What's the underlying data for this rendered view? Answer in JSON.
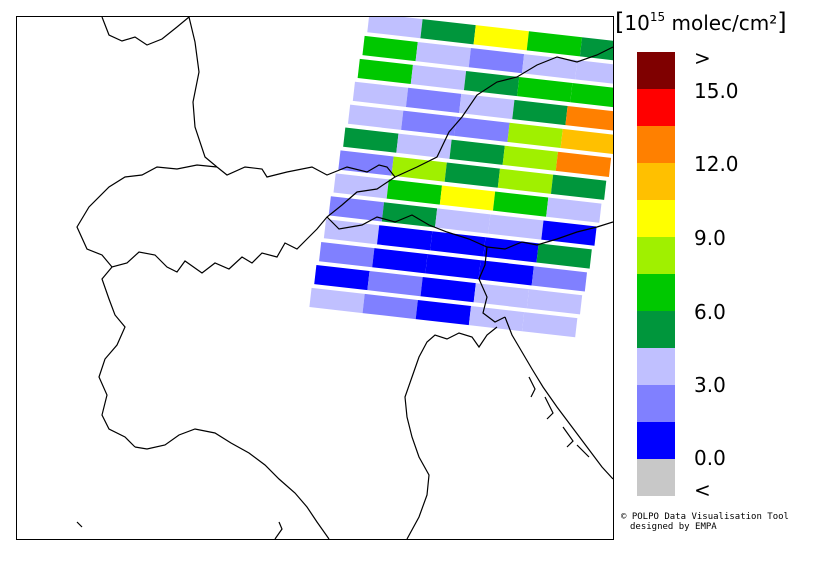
{
  "legend": {
    "unit_prefix": "10",
    "unit_exponent": "15",
    "unit_suffix": "molec/cm²",
    "swatches": [
      "#7f0000",
      "#ff0000",
      "#ff8000",
      "#ffc000",
      "#ffff00",
      "#a0f000",
      "#00c800",
      "#00963c",
      "#c0c0ff",
      "#8080ff",
      "#0000ff",
      "#c8c8c8"
    ],
    "ticks": [
      ">",
      "15.0",
      "12.0",
      "9.0",
      "6.0",
      "3.0",
      "0.0",
      "<"
    ]
  },
  "credit": {
    "line1": "© POLPO Data Visualisation Tool",
    "line2": "designed by EMPA"
  },
  "satellite_pixels": [
    [
      "#c0c0ff",
      "#00963c",
      "#ffff00",
      "#00c800",
      "#00963c"
    ],
    [
      "#00c800",
      "#c0c0ff",
      "#8080ff",
      "#c0c0ff",
      "#c0c0ff"
    ],
    [
      "#00c800",
      "#c0c0ff",
      "#00963c",
      "#00c800",
      "#00c800"
    ],
    [
      "#c0c0ff",
      "#8080ff",
      "#c0c0ff",
      "#00963c",
      "#ff8000"
    ],
    [
      "#c0c0ff",
      "#8080ff",
      "#8080ff",
      "#a0f000",
      "#ffc000"
    ],
    [
      "#00963c",
      "#c0c0ff",
      "#00963c",
      "#a0f000",
      "#ff8000"
    ],
    [
      "#8080ff",
      "#a0f000",
      "#00963c",
      "#a0f000",
      "#00963c"
    ],
    [
      "#c0c0ff",
      "#00c800",
      "#ffff00",
      "#00c800",
      "#c0c0ff"
    ],
    [
      "#8080ff",
      "#00963c",
      "#c0c0ff",
      "#c0c0ff",
      "#0000ff"
    ],
    [
      "#c0c0ff",
      "#0000ff",
      "#0000ff",
      "#0000ff",
      "#00963c"
    ],
    [
      "#8080ff",
      "#0000ff",
      "#0000ff",
      "#0000ff",
      "#8080ff"
    ],
    [
      "#0000ff",
      "#8080ff",
      "#0000ff",
      "#c0c0ff",
      "#c0c0ff"
    ],
    [
      "#c0c0ff",
      "#8080ff",
      "#0000ff",
      "#c0c0ff",
      "#c0c0ff"
    ]
  ]
}
